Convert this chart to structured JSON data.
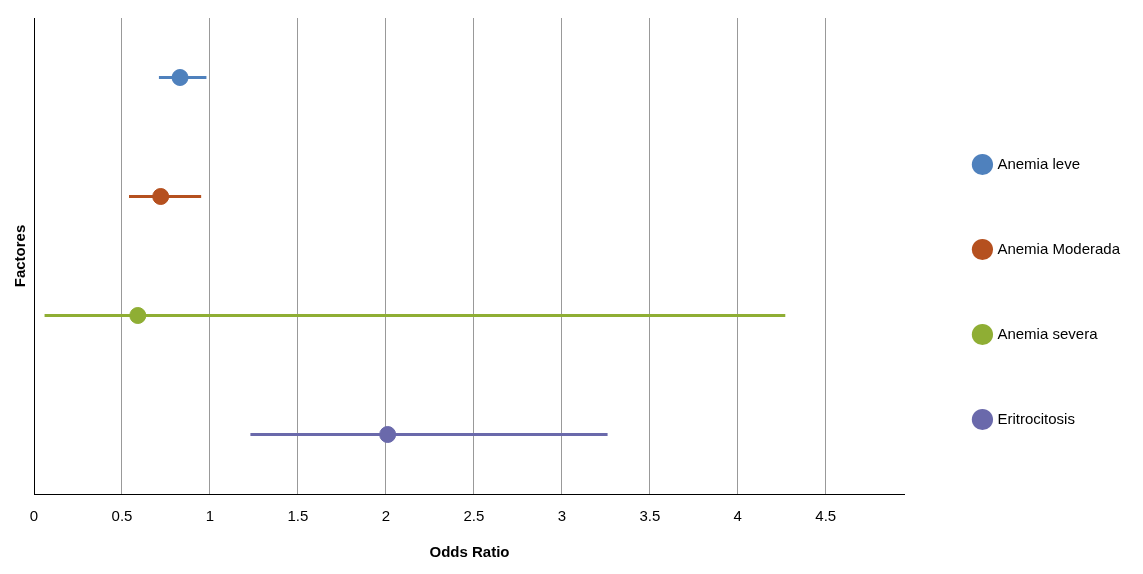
{
  "chart_data": {
    "type": "scatter",
    "orientation": "horizontal",
    "xlabel": "Odds Ratio",
    "ylabel": "Factores",
    "categories": [
      null,
      null,
      null,
      null
    ],
    "series": [
      {
        "name": "Anemia leve",
        "color": "#4f81bd",
        "values": [
          0.83,
          null,
          null,
          null
        ],
        "errors": [
          [
            0.71,
            0.98
          ],
          null,
          null,
          null
        ]
      },
      {
        "name": "Anemia Moderada",
        "color": "#b5501f",
        "values": [
          null,
          0.72,
          null,
          null
        ],
        "errors": [
          null,
          [
            0.54,
            0.95
          ],
          null,
          null
        ]
      },
      {
        "name": "Anemia severa",
        "color": "#8fae34",
        "values": [
          null,
          null,
          0.59,
          null
        ],
        "errors": [
          null,
          null,
          [
            0.06,
            4.27
          ],
          null
        ]
      },
      {
        "name": "Eritrocitosis",
        "color": "#6a69ab",
        "values": [
          null,
          null,
          null,
          2.01
        ],
        "errors": [
          null,
          null,
          null,
          [
            1.23,
            3.26
          ]
        ]
      }
    ],
    "xlim": [
      0,
      4.95
    ],
    "xticks": [
      0,
      0.5,
      1,
      1.5,
      2,
      2.5,
      3,
      3.5,
      4,
      4.5
    ],
    "grid": "x",
    "legend": "right",
    "tick_labels": "x",
    "marker": "circle"
  }
}
